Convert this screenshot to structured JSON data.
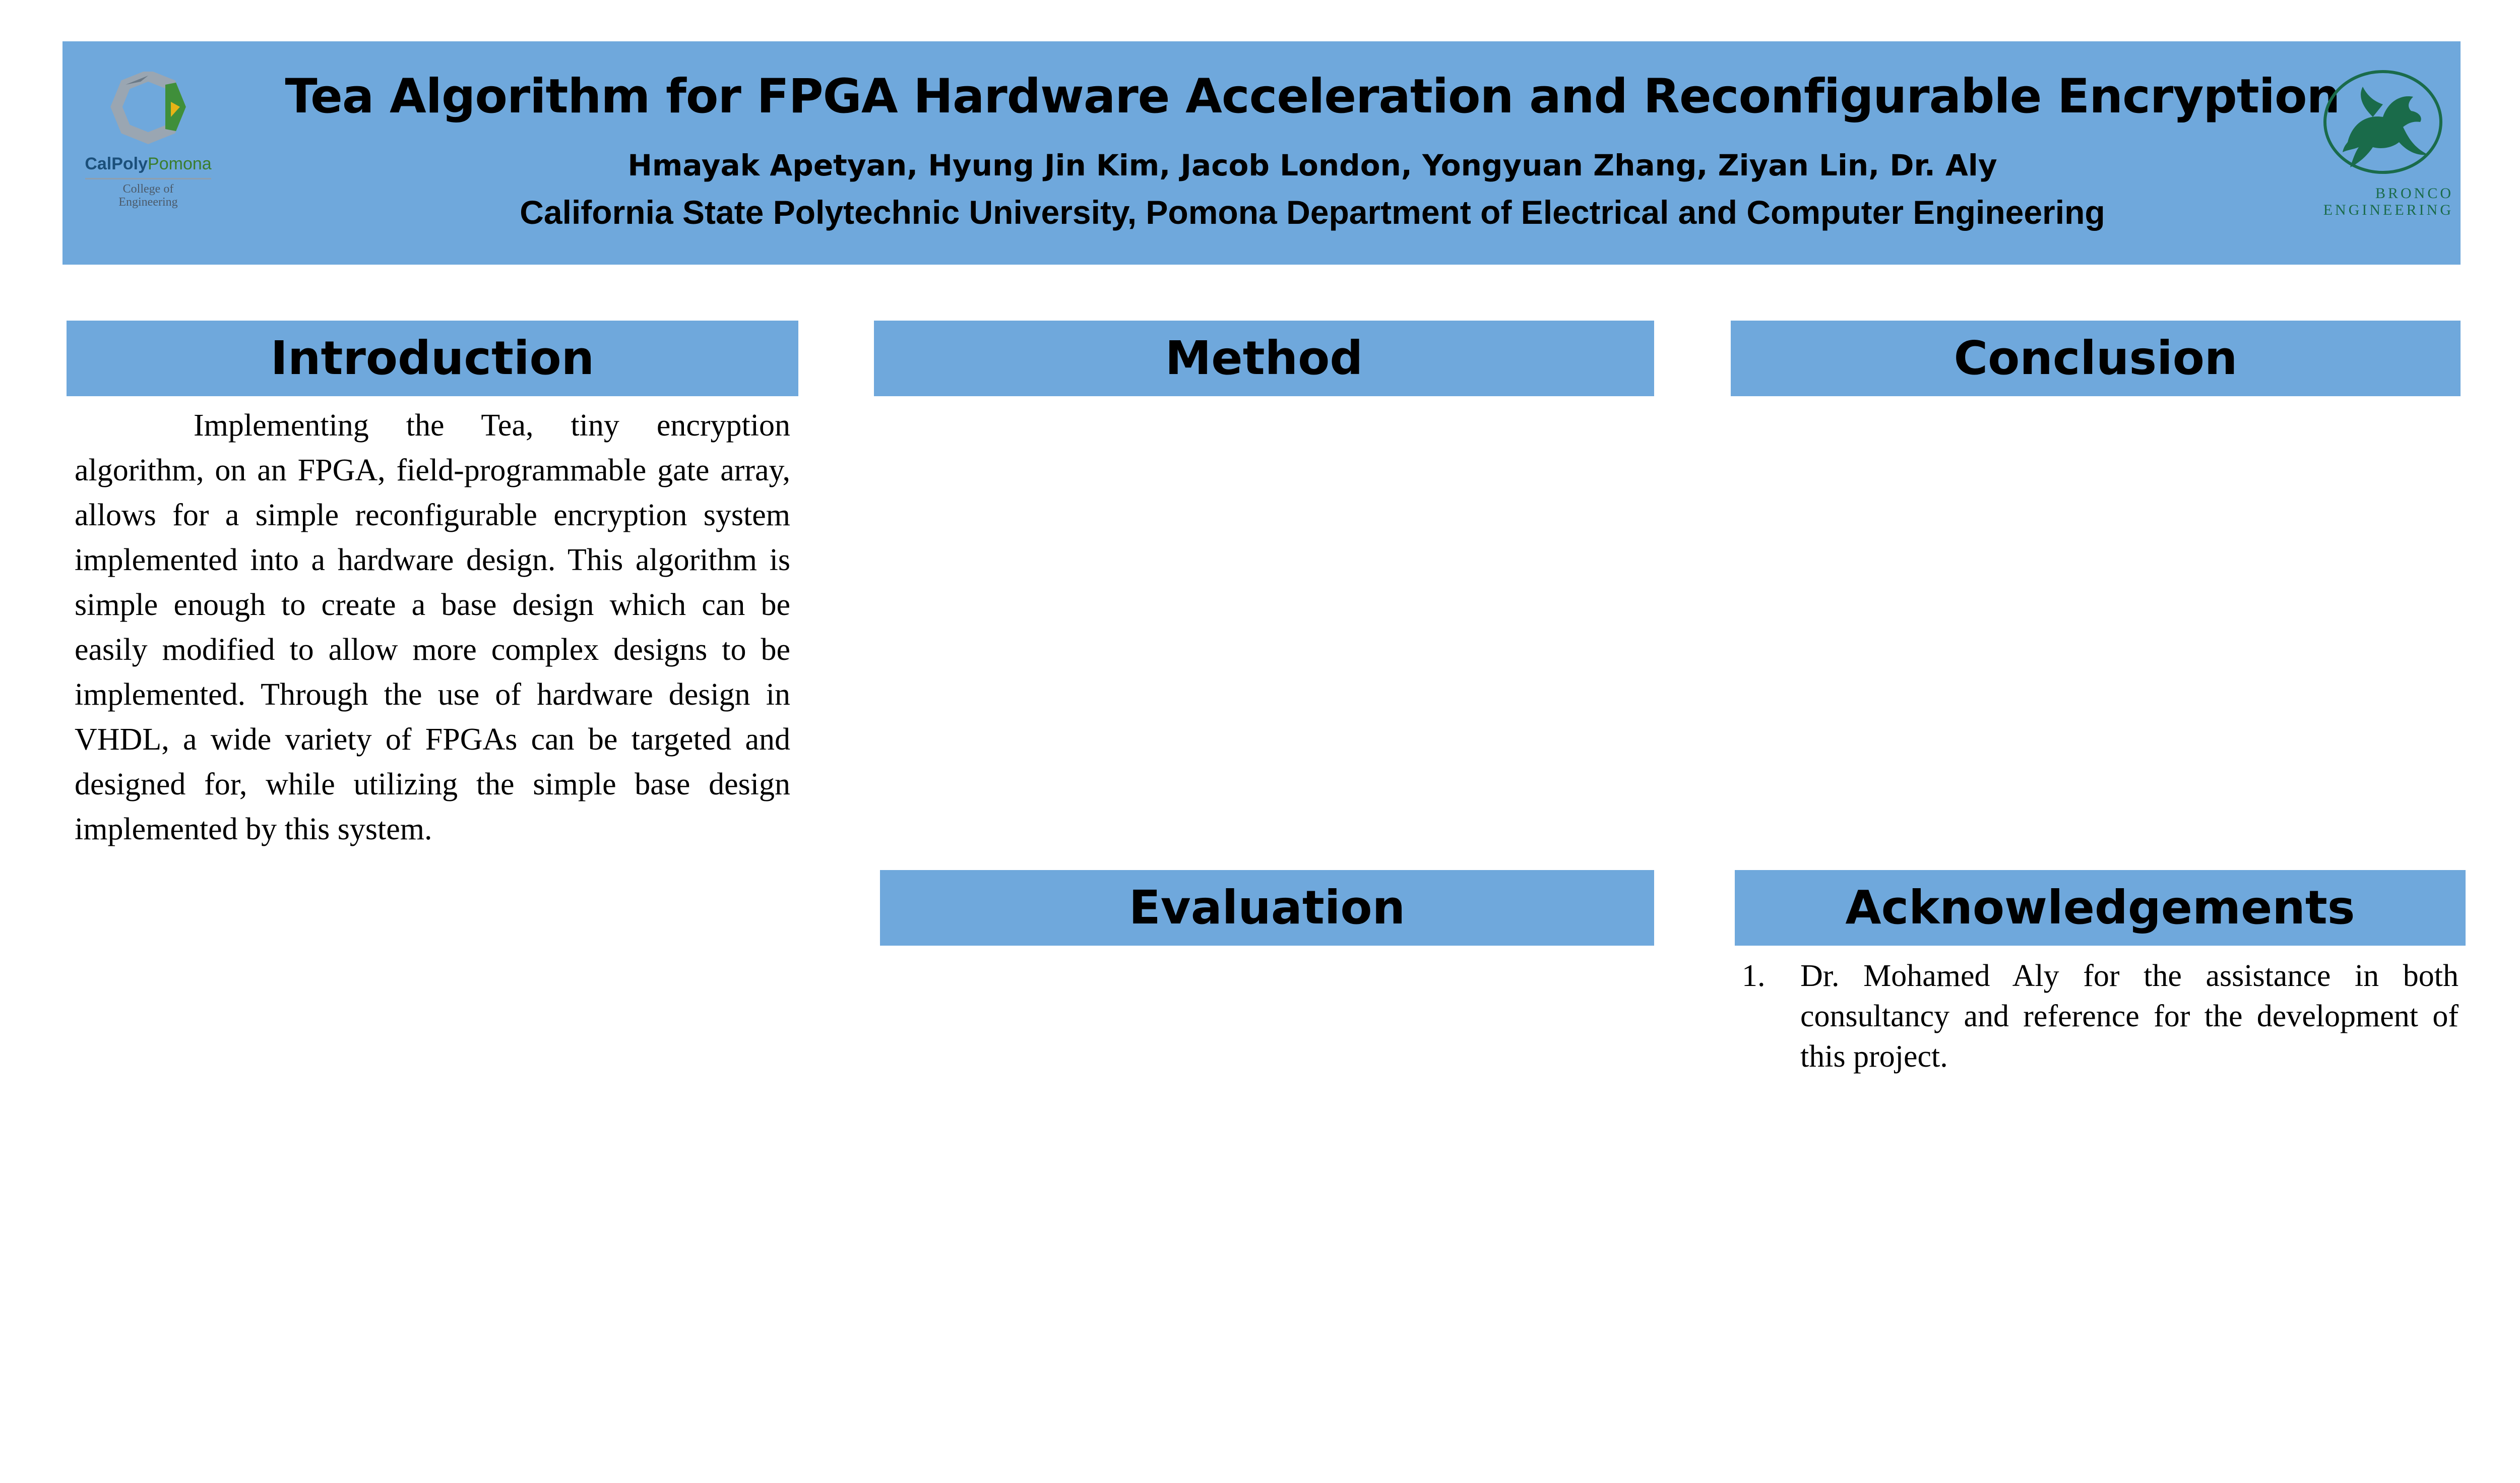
{
  "header": {
    "title": "Tea Algorithm for FPGA Hardware Acceleration and Reconfigurable Encryption",
    "authors": "Hmayak Apetyan, Hyung Jin Kim, Jacob London, Yongyuan Zhang, Ziyan Lin, Dr. Aly",
    "affiliation": "California State Polytechnic University, Pomona Department of Electrical and Computer Engineering",
    "left_logo": {
      "icon": "calpoly-octagon-logo",
      "name_part1": "CalPoly",
      "name_part2": "Pomona",
      "line1": "College of",
      "line2": "Engineering"
    },
    "right_logo": {
      "icon": "bronco-horse-logo",
      "line1": "BRONCO",
      "line2": "ENGINEERING"
    },
    "colors": {
      "banner": "#6fa8dc",
      "section_header": "#6fa8dc"
    }
  },
  "sections": {
    "introduction": {
      "heading": "Introduction",
      "text": "Implementing the Tea, tiny encryption algorithm, on an FPGA, field-programmable gate array, allows for a simple reconfigurable encryption system implemented into a hardware design. This algorithm is simple enough to create a base design which can be easily modified to allow more complex designs to be implemented. Through the use of hardware design in VHDL, a wide variety of FPGAs can be targeted and designed for, while utilizing the simple base design implemented by this system."
    },
    "method": {
      "heading": "Method"
    },
    "conclusion": {
      "heading": "Conclusion"
    },
    "evaluation": {
      "heading": "Evaluation"
    },
    "acknowledgements": {
      "heading": "Acknowledgements",
      "items": [
        {
          "number": "1.",
          "text": "Dr. Mohamed Aly for the assistance in both consultancy and reference for the development of this project."
        }
      ]
    }
  }
}
